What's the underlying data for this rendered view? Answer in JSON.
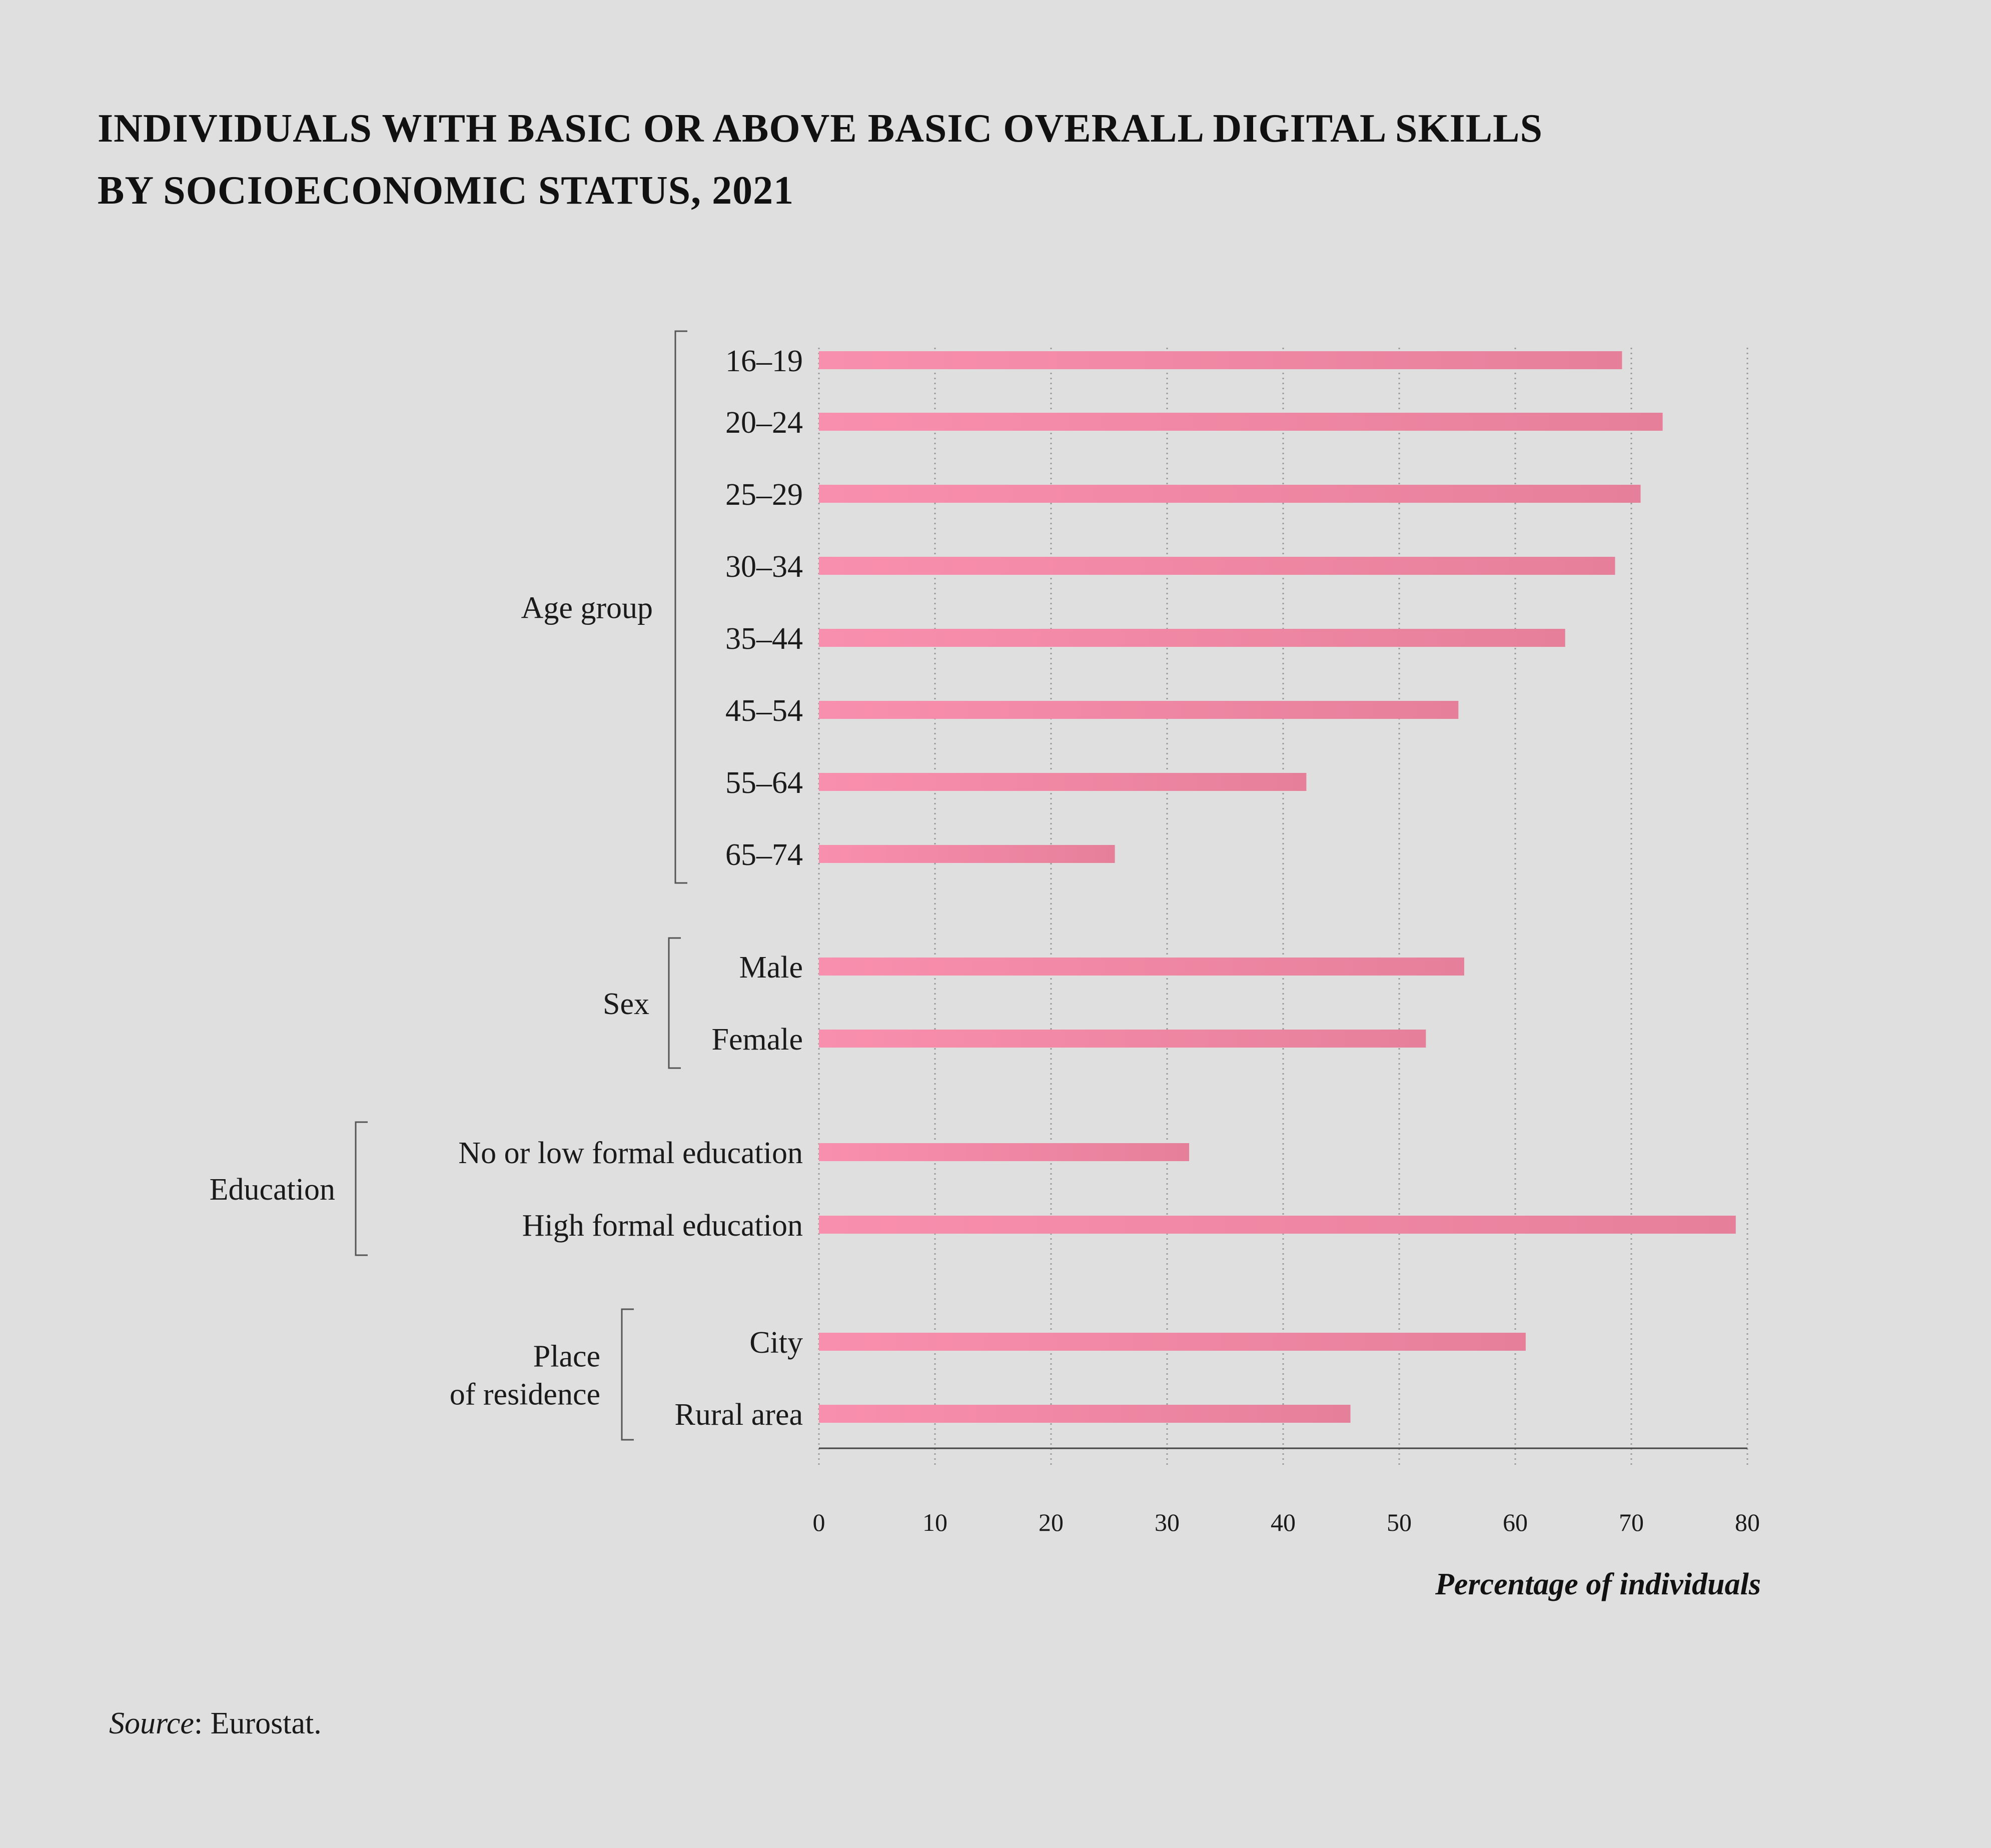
{
  "title": {
    "line1": "INDIVIDUALS WITH BASIC OR ABOVE BASIC OVERALL DIGITAL SKILLS",
    "line2": "BY SOCIOECONOMIC STATUS, 2021"
  },
  "source": {
    "label": "Source",
    "text": ": Eurostat."
  },
  "colors": {
    "bar_start": "#f98fae",
    "bar_end": "#e6809a",
    "text": "#1a1a1a",
    "grid": "#9a9a9a"
  },
  "chart_data": {
    "type": "bar",
    "orientation": "horizontal",
    "xlabel": "Percentage of individuals",
    "xlim": [
      0,
      80
    ],
    "xticks": [
      0,
      10,
      20,
      30,
      40,
      50,
      60,
      70,
      80
    ],
    "grid": "vertical dotted",
    "groups": [
      {
        "name": "Age group",
        "categories": [
          "16–19",
          "20–24",
          "25–29",
          "30–34",
          "35–44",
          "45–54",
          "55–64",
          "65–74"
        ],
        "values": [
          69.2,
          72.7,
          70.8,
          68.6,
          64.3,
          55.1,
          42.0,
          25.5
        ]
      },
      {
        "name": "Sex",
        "categories": [
          "Male",
          "Female"
        ],
        "values": [
          55.6,
          52.3
        ]
      },
      {
        "name": "Education",
        "categories": [
          "No or low formal education",
          "High formal education"
        ],
        "values": [
          31.9,
          79.0
        ]
      },
      {
        "name": "Place\nof residence",
        "categories": [
          "City",
          "Rural area"
        ],
        "values": [
          60.9,
          45.8
        ]
      }
    ]
  }
}
